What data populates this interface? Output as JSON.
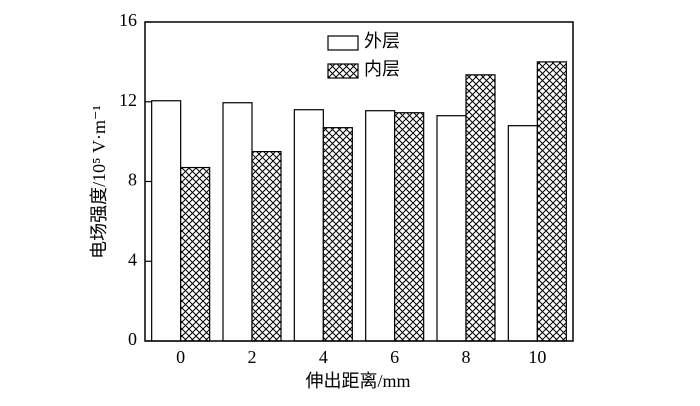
{
  "chart_data": {
    "type": "bar",
    "xlabel": "伸出距离/mm",
    "ylabel": "电场强度/10⁵ V·m⁻¹",
    "categories": [
      "0",
      "2",
      "4",
      "6",
      "8",
      "10"
    ],
    "series": [
      {
        "name": "外层",
        "color": "#ffffff",
        "values": [
          12.05,
          11.95,
          11.6,
          11.55,
          11.3,
          10.8
        ]
      },
      {
        "name": "内层",
        "color": "#000000",
        "hatch": "crosshatch",
        "values": [
          8.7,
          9.5,
          10.7,
          11.45,
          13.35,
          14.0
        ]
      }
    ],
    "ylim": [
      0,
      16
    ],
    "yticks": [
      0,
      4,
      8,
      12,
      16
    ],
    "grid": false,
    "legend": "top"
  }
}
